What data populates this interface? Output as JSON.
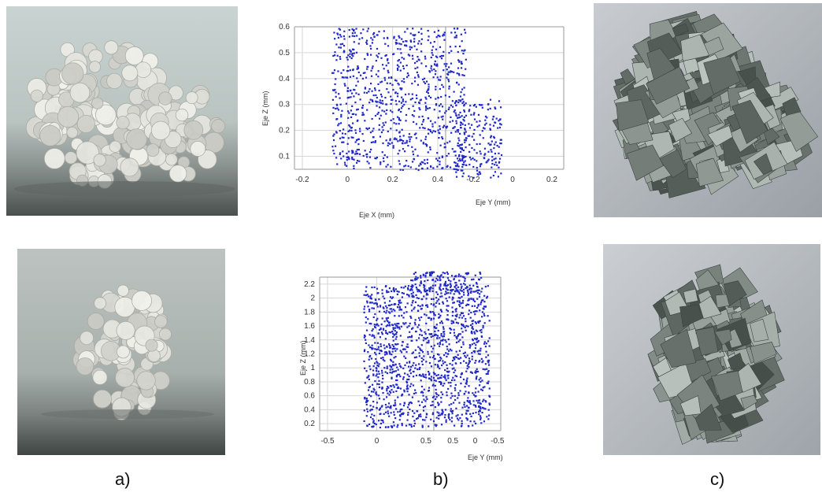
{
  "captions": {
    "a": "a)",
    "b": "b)",
    "c": "c)"
  },
  "colors": {
    "point": "#2028c8",
    "crystal": "#e8e6e0",
    "mesh": "#7d8a8c"
  },
  "chart_data": [
    {
      "type": "scatter",
      "title": "",
      "xlabel": "Eje X (mm)",
      "ylabel": "Eje Y (mm)",
      "zlabel": "Eje Z (mm)",
      "x_ticks": [
        "-0.2",
        "0",
        "0.2",
        "0.4"
      ],
      "y_ticks": [
        "-0.2",
        "0",
        "0.2"
      ],
      "z_ticks": [
        "0.1",
        "0.2",
        "0.3",
        "0.4",
        "0.5",
        "0.6"
      ],
      "zlim": [
        0.05,
        0.6
      ],
      "grid": true
    },
    {
      "type": "scatter",
      "title": "",
      "xlabel": "",
      "ylabel": "Eje Y (mm)",
      "zlabel": "Eje Z (mm)",
      "x_ticks": [
        "-0.5",
        "0",
        "0.5"
      ],
      "y_ticks": [
        "0.5",
        "0",
        "-0.5"
      ],
      "z_ticks": [
        "0.2",
        "0.4",
        "0.6",
        "0.8",
        "1",
        "1.2",
        "1.4",
        "1.6",
        "1.8",
        "2",
        "2.2"
      ],
      "zlim": [
        0.1,
        2.3
      ],
      "grid": true
    }
  ]
}
